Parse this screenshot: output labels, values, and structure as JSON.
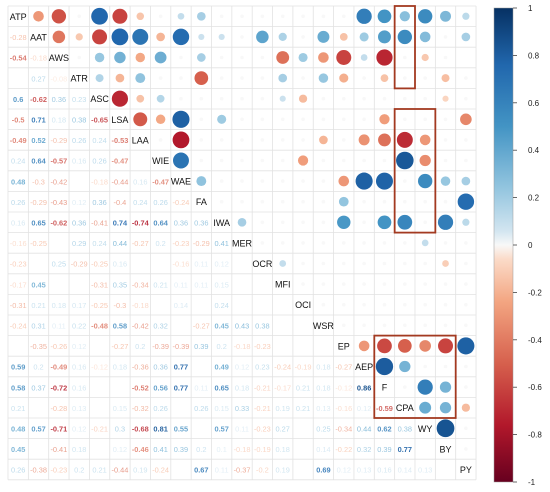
{
  "chart_data": {
    "type": "heatmap",
    "variables": [
      "ATP",
      "AAT",
      "AWS",
      "ATR",
      "ASC",
      "LSA",
      "LAA",
      "WIE",
      "WAE",
      "FA",
      "IWA",
      "MER",
      "OCR",
      "MFI",
      "OCI",
      "WSR",
      "EP",
      "AEP",
      "F",
      "CPA",
      "WY",
      "BY",
      "PY"
    ],
    "colorbar": {
      "min": -1,
      "max": 1,
      "ticks": [
        "1",
        "0.8",
        "0.6",
        "0.4",
        "0.2",
        "0",
        "-0.2",
        "-0.4",
        "-0.6",
        "-0.8",
        "-1"
      ]
    },
    "lower_labels": {
      "1": [
        "-0.28"
      ],
      "2": [
        "-0.54",
        "-0.18"
      ],
      "3": [
        "",
        "0.27",
        "-0.08"
      ],
      "4": [
        "0.6",
        "-0.62",
        "0.36",
        "0.23"
      ],
      "5": [
        "-0.5",
        "0.71",
        "0.18",
        "0.38",
        "-0.65"
      ],
      "6": [
        "-0.49",
        "0.52",
        "-0.29",
        "0.26",
        "0.24",
        "-0.53"
      ],
      "7": [
        "0.24",
        "0.64",
        "-0.57",
        "0.16",
        "0.26",
        "-0.47"
      ],
      "8": [
        "0.48",
        "-0.3",
        "-0.42",
        "",
        "-0.18",
        "-0.44",
        "0.16",
        "-0.47"
      ],
      "9": [
        "0.26",
        "-0.29",
        "-0.43",
        "0.12",
        "0.36",
        "-0.4",
        "0.24",
        "0.26",
        "-0.24"
      ],
      "10": [
        "0.16",
        "0.65",
        "-0.62",
        "0.36",
        "-0.41",
        "0.74",
        "-0.74",
        "0.64",
        "0.36",
        "0.36"
      ],
      "11": [
        "-0.16",
        "-0.25",
        "",
        "0.29",
        "0.24",
        "0.44",
        "-0.27",
        "0.2",
        "-0.23",
        "-0.29",
        "0.41"
      ],
      "12": [
        "-0.23",
        "",
        "0.25",
        "-0.29",
        "-0.25",
        "0.16",
        "",
        "",
        "-0.16",
        "0.11",
        "0.12"
      ],
      "13": [
        "-0.17",
        "0.45",
        "",
        "",
        "-0.31",
        "0.35",
        "-0.34",
        "0.21",
        "0.11",
        "0.11",
        "0.15"
      ],
      "14": [
        "-0.31",
        "0.21",
        "0.18",
        "0.17",
        "-0.25",
        "-0.3",
        "-0.18",
        "",
        "0.14",
        "",
        "0.24"
      ],
      "15": [
        "-0.24",
        "0.31",
        "0.11",
        "0.22",
        "-0.48",
        "0.58",
        "-0.42",
        "0.32",
        "",
        "-0.27",
        "0.45",
        "0.43",
        "0.38"
      ],
      "16": [
        "",
        "-0.35",
        "-0.26",
        "0.12",
        "",
        "-0.27",
        "0.2",
        "-0.39",
        "-0.39",
        "0.39",
        "0.2",
        "-0.18",
        "-0.23"
      ],
      "17": [
        "0.59",
        "0.2",
        "-0.49",
        "0.16",
        "-0.12",
        "0.18",
        "-0.36",
        "0.36",
        "0.77",
        "",
        "0.49",
        "0.12",
        "0.23",
        "-0.24",
        "-0.19",
        "0.18",
        "-0.27"
      ],
      "18": [
        "0.58",
        "0.37",
        "-0.72",
        "0.16",
        "",
        "",
        "-0.52",
        "0.56",
        "0.77",
        "0.11",
        "0.65",
        "0.18",
        "-0.21",
        "-0.17",
        "0.21",
        "0.18",
        "-0.12",
        "0.86"
      ],
      "19": [
        "0.21",
        "",
        "-0.28",
        "0.13",
        "",
        "0.15",
        "-0.32",
        "0.26",
        "",
        "0.26",
        "0.15",
        "0.33",
        "-0.21",
        "0.19",
        "0.21",
        "0.13",
        "-0.16",
        "0.12",
        "-0.59"
      ],
      "20": [
        "0.48",
        "0.57",
        "-0.71",
        "0.12",
        "-0.21",
        "0.3",
        "-0.68",
        "0.81",
        "0.55",
        "",
        "0.57",
        "0.11",
        "-0.23",
        "0.27",
        "",
        "0.25",
        "-0.34",
        "0.44",
        "0.62",
        "0.38"
      ],
      "21": [
        "0.45",
        "",
        "-0.41",
        "0.18",
        "",
        "0.12",
        "-0.46",
        "0.41",
        "0.39",
        "0.2",
        "0.1",
        "-0.18",
        "-0.19",
        "0.18",
        "",
        "0.14",
        "-0.22",
        "0.32",
        "0.39",
        "0.77"
      ],
      "22": [
        "0.26",
        "-0.38",
        "-0.23",
        "0.2",
        "0.21",
        "-0.44",
        "0.19",
        "-0.24",
        "",
        "0.67",
        "0.11",
        "-0.37",
        "-0.2",
        "0.19",
        "",
        "0.69",
        "0.12",
        "0.13",
        "0.16",
        "0.14",
        "0.13"
      ]
    },
    "upper_circles": {
      "0": [
        -0.3,
        -0.55,
        0.0,
        0.75,
        -0.6,
        -0.15,
        0.0,
        0.12,
        0.2,
        0.0,
        0.0,
        0.0,
        0.0,
        0.0,
        0.0,
        0.0,
        0.62,
        0.5,
        0.28,
        0.55,
        0.32,
        0.14
      ],
      "1": [
        -0.42,
        -0.14,
        -0.6,
        0.75,
        0.68,
        -0.2,
        0.72,
        0.1,
        0.1,
        0.0,
        0.42,
        0.18,
        0.0,
        0.38,
        -0.16,
        0.22,
        0.45,
        0.55,
        0.3,
        0.0,
        0.2
      ],
      "2": [
        0.0,
        0.24,
        0.35,
        -0.24,
        0.37,
        0.0,
        0.2,
        0.0,
        0.0,
        0.0,
        -0.44,
        0.22,
        -0.3,
        -0.6,
        0.12,
        -0.7,
        0.0,
        -0.14,
        0.0
      ],
      "3": [
        0.17,
        -0.2,
        0.26,
        0.0,
        0.0,
        -0.5,
        0.0,
        0.0,
        0.0,
        0.2,
        0.0,
        0.24,
        -0.22,
        0.0,
        -0.16,
        0.0,
        0.0,
        -0.17,
        0.0
      ],
      "4": [
        -0.7,
        -0.16,
        0.16,
        0.0,
        0.0,
        0.0,
        0.0,
        0.0,
        0.1,
        -0.18,
        0.0,
        0.0,
        0.0,
        0.0,
        0.0,
        0.0,
        -0.1,
        0.0
      ],
      "5": [
        -0.52,
        -0.24,
        0.78,
        0.0,
        0.22,
        0.0,
        0.0,
        0.0,
        0.0,
        0.0,
        0.0,
        0.0,
        -0.28,
        0.0,
        0.0,
        0.0,
        -0.36
      ],
      "6": [
        0.0,
        -0.75,
        0.0,
        0.0,
        0.0,
        0.0,
        0.0,
        0.0,
        -0.2,
        0.0,
        -0.32,
        -0.44,
        -0.68,
        -0.3,
        0.0,
        0.0
      ],
      "7": [
        0.68,
        0.0,
        0.0,
        0.0,
        0.0,
        0.0,
        -0.28,
        0.0,
        0.0,
        0.0,
        0.0,
        0.82,
        -0.34,
        0.0,
        0.0
      ],
      "8": [
        0.26,
        0.0,
        0.0,
        0.0,
        0.0,
        0.0,
        0.0,
        -0.3,
        0.78,
        0.77,
        0.0,
        0.55,
        0.24,
        0.2
      ],
      "9": [
        0.0,
        0.0,
        0.0,
        0.0,
        0.0,
        0.0,
        0.25,
        0.0,
        0.0,
        0.0,
        0.0,
        0.0,
        0.72
      ],
      "10": [
        0.2,
        0.0,
        0.0,
        0.0,
        0.0,
        0.48,
        0.0,
        0.5,
        0.58,
        0.0,
        0.62,
        0.14
      ],
      "11": [
        0.0,
        0.0,
        0.0,
        0.0,
        0.0,
        0.0,
        0.0,
        0.0,
        0.12,
        0.0,
        0.0
      ],
      "12": [
        0.12,
        0.0,
        0.0,
        0.0,
        0.0,
        0.0,
        0.0,
        0.0,
        -0.12,
        0.0
      ],
      "13": [
        0.0,
        0.0,
        0.0,
        0.0,
        0.0,
        0.0,
        0.0,
        0.0,
        0.0
      ],
      "14": [
        0.0,
        0.0,
        0.0,
        0.0,
        0.0,
        0.0,
        0.0,
        0.0
      ],
      "15": [
        0.0,
        0.0,
        0.0,
        0.0,
        0.0,
        0.0,
        0.0
      ],
      "16": [
        -0.3,
        -0.58,
        -0.5,
        -0.36,
        -0.6,
        0.78
      ],
      "17": [
        0.8,
        0.34,
        0.0,
        0.0,
        0.0
      ],
      "18": [
        0.0,
        0.62,
        0.34,
        0.0
      ],
      "19": [
        0.38,
        0.34,
        -0.18
      ],
      "20": [
        0.84,
        0.0
      ],
      "21": [
        0.0
      ]
    },
    "highlight_boxes": [
      {
        "rows": [
          0,
          3
        ],
        "cols": [
          19,
          19
        ]
      },
      {
        "rows": [
          5,
          10
        ],
        "cols": [
          19,
          20
        ]
      },
      {
        "rows": [
          16,
          19
        ],
        "cols": [
          18,
          21
        ]
      }
    ]
  }
}
